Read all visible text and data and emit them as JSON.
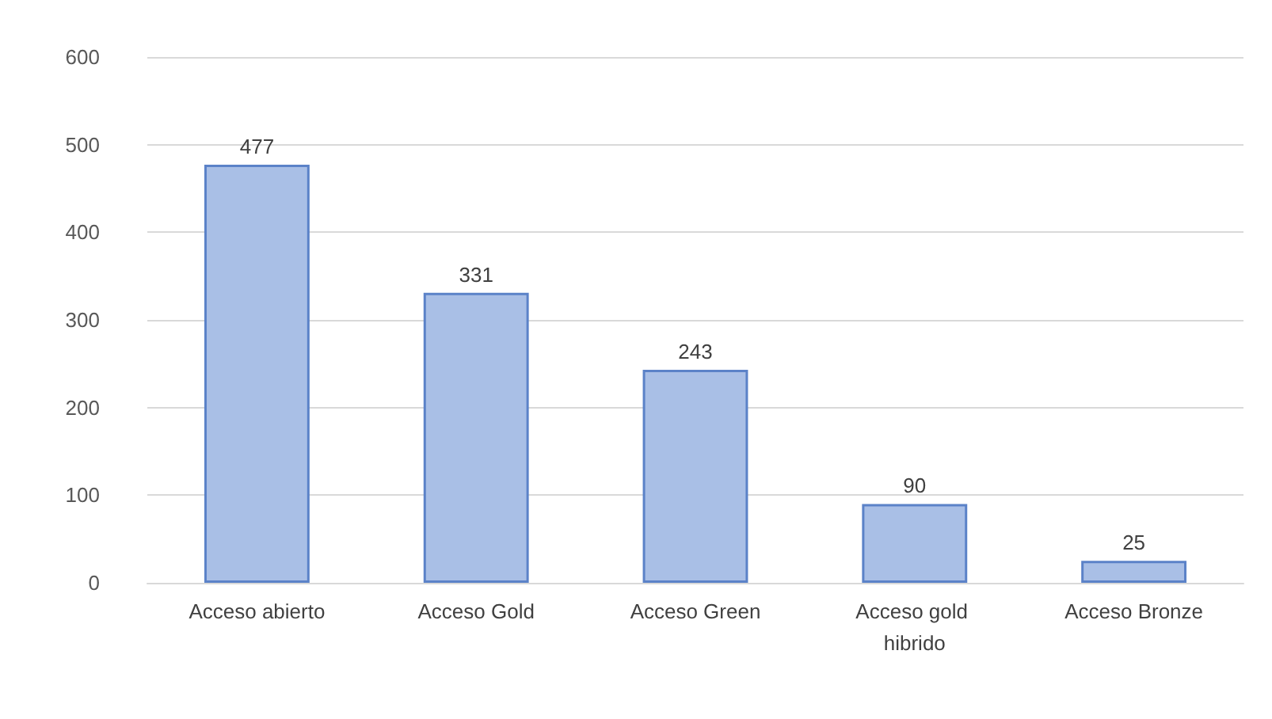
{
  "chart_data": {
    "type": "bar",
    "categories": [
      "Acceso abierto",
      "Acceso Gold",
      "Acceso Green",
      "Acceso gold hibrido",
      "Acceso Bronze"
    ],
    "values": [
      477,
      331,
      243,
      90,
      25
    ],
    "color": "#a9bfe6",
    "ylim": [
      0,
      600
    ],
    "yticks": [
      0,
      100,
      200,
      300,
      400,
      500,
      600
    ],
    "grid": "y",
    "data_labels": true
  }
}
